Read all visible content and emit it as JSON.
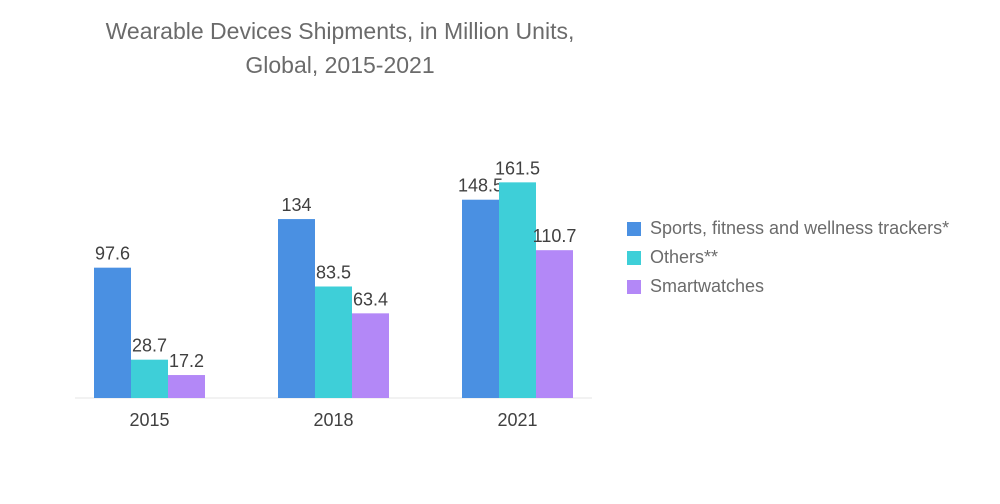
{
  "chart_data": {
    "type": "bar",
    "title_line1": "Wearable Devices Shipments, in Million Units,",
    "title_line2": "Global, 2015-2021",
    "categories": [
      "2015",
      "2018",
      "2021"
    ],
    "series": [
      {
        "name": "Sports, fitness and wellness trackers*",
        "values": [
          97.6,
          134,
          148.5
        ],
        "labels": [
          "97.6",
          "134",
          "148.5"
        ],
        "color": "#4a90e2"
      },
      {
        "name": "Others**",
        "values": [
          28.7,
          83.5,
          161.5
        ],
        "labels": [
          "28.7",
          "83.5",
          "161.5"
        ],
        "color": "#3ecfd8"
      },
      {
        "name": "Smartwatches",
        "values": [
          17.2,
          63.4,
          110.7
        ],
        "labels": [
          "17.2",
          "63.4",
          "110.7"
        ],
        "color": "#b388f7"
      }
    ],
    "xlabel": "",
    "ylabel": "",
    "ylim": [
      0,
      170
    ],
    "grid": false,
    "legend_position": "right"
  }
}
